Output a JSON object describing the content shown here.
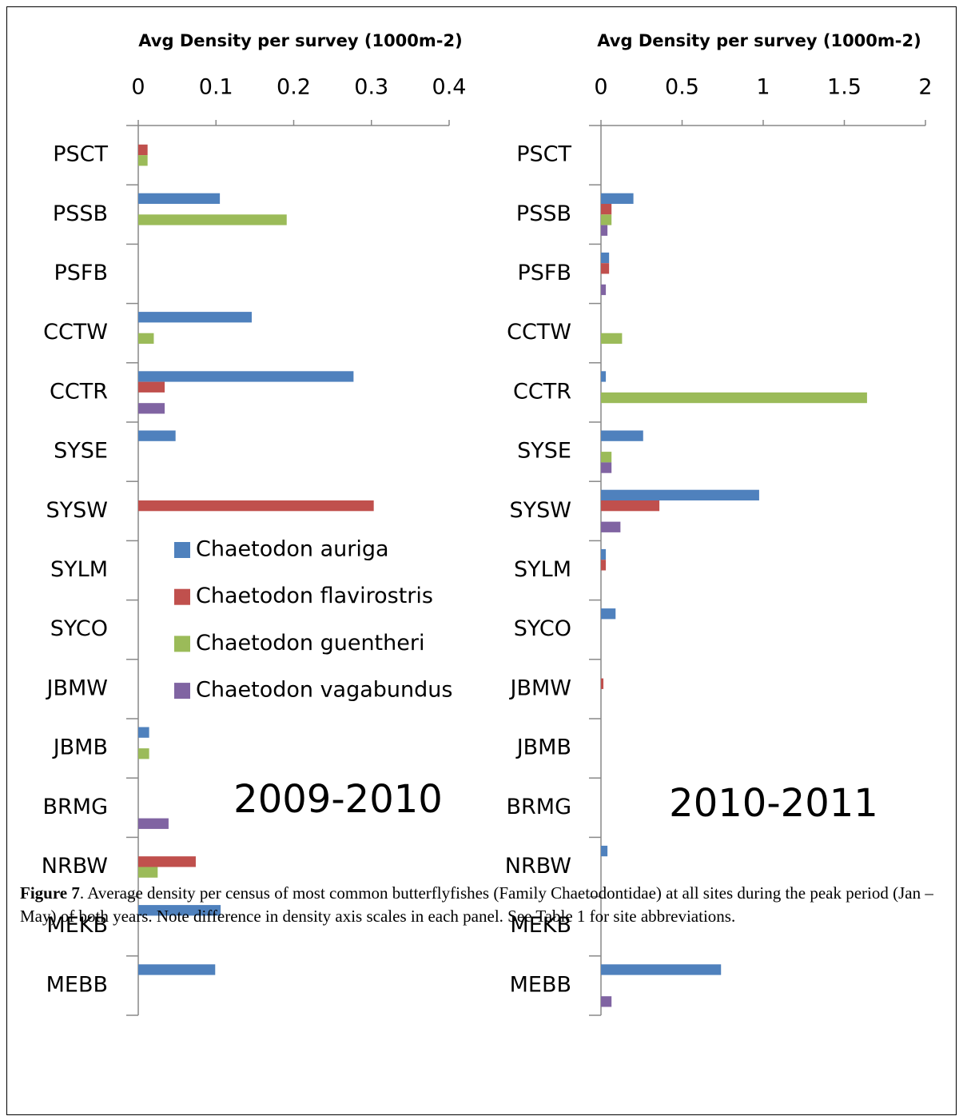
{
  "chart_data": [
    {
      "type": "hbar",
      "x_label": "Avg Density per survey (1000m-2)",
      "annotation": "2009-2010",
      "categories": [
        "PSCT",
        "PSSB",
        "PSFB",
        "CCTW",
        "CCTR",
        "SYSE",
        "SYSW",
        "SYLM",
        "SYCO",
        "JBMW",
        "JBMB",
        "BRMG",
        "NRBW",
        "MEKB",
        "MEBB"
      ],
      "xlim": [
        0,
        0.4
      ],
      "xticks": [
        0,
        0.1,
        0.2,
        0.3,
        0.4
      ],
      "legend": "inside",
      "series": [
        {
          "name": "Chaetodon auriga",
          "color": "#4f81bd",
          "values": [
            0,
            0.105,
            0,
            0.146,
            0.277,
            0.048,
            0,
            0,
            0,
            0,
            0.014,
            0,
            0,
            0.106,
            0.099
          ]
        },
        {
          "name": "Chaetodon flavirostris",
          "color": "#c0504d",
          "values": [
            0.012,
            0,
            0,
            0,
            0.034,
            0,
            0.303,
            0,
            0,
            0,
            0,
            0,
            0.074,
            0,
            0
          ]
        },
        {
          "name": "Chaetodon guentheri",
          "color": "#9bbb59",
          "values": [
            0.012,
            0.191,
            0,
            0.02,
            0,
            0,
            0,
            0,
            0,
            0,
            0.014,
            0,
            0.025,
            0,
            0
          ]
        },
        {
          "name": "Chaetodon vagabundus",
          "color": "#8064a2",
          "values": [
            0,
            0,
            0,
            0,
            0.034,
            0,
            0,
            0,
            0,
            0,
            0,
            0.039,
            0,
            0,
            0
          ]
        }
      ]
    },
    {
      "type": "hbar",
      "x_label": "Avg Density per survey (1000m-2)",
      "annotation": "2010-2011",
      "categories": [
        "PSCT",
        "PSSB",
        "PSFB",
        "CCTW",
        "CCTR",
        "SYSE",
        "SYSW",
        "SYLM",
        "SYCO",
        "JBMW",
        "JBMB",
        "BRMG",
        "NRBW",
        "MEKB",
        "MEBB"
      ],
      "xlim": [
        0,
        2
      ],
      "xticks": [
        0,
        0.5,
        1,
        1.5,
        2
      ],
      "series": [
        {
          "color": "#4f81bd",
          "values": [
            0,
            0.2,
            0.05,
            0,
            0.03,
            0.26,
            0.975,
            0.03,
            0.09,
            0,
            0,
            0,
            0.04,
            0,
            0.74
          ]
        },
        {
          "color": "#c0504d",
          "values": [
            0,
            0.065,
            0.05,
            0,
            0,
            0,
            0.36,
            0.03,
            0,
            0.015,
            0,
            0,
            0,
            0,
            0
          ]
        },
        {
          "color": "#9bbb59",
          "values": [
            0,
            0.065,
            0,
            0.13,
            1.64,
            0.065,
            0,
            0,
            0,
            0,
            0,
            0,
            0,
            0,
            0
          ]
        },
        {
          "color": "#8064a2",
          "values": [
            0,
            0.04,
            0.03,
            0,
            0,
            0.065,
            0.12,
            0,
            0,
            0,
            0,
            0,
            0,
            0,
            0.065
          ]
        }
      ]
    }
  ],
  "caption": {
    "label": "Figure 7",
    "text": ". Average density per census of most common butterflyfishes (Family Chaetodontidae) at all sites during the peak period (Jan – May) of both years. Note difference in density axis scales in each panel. See Table 1 for site abbreviations."
  }
}
